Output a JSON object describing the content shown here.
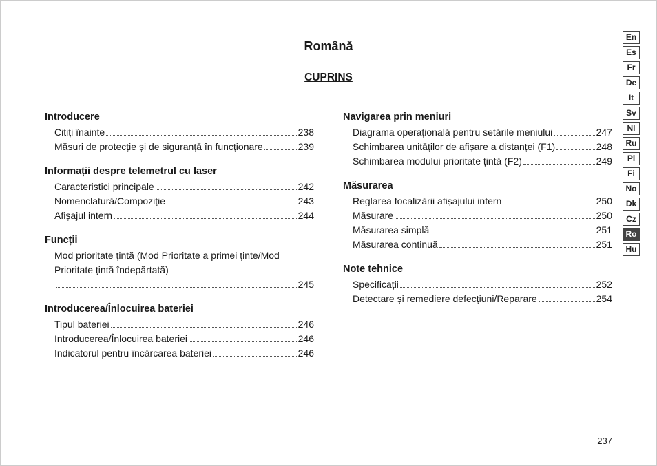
{
  "title": "Română",
  "subtitle": "CUPRINS",
  "page_number": "237",
  "lang_tabs": [
    {
      "code": "En",
      "active": false
    },
    {
      "code": "Es",
      "active": false
    },
    {
      "code": "Fr",
      "active": false
    },
    {
      "code": "De",
      "active": false
    },
    {
      "code": "It",
      "active": false
    },
    {
      "code": "Sv",
      "active": false
    },
    {
      "code": "Nl",
      "active": false
    },
    {
      "code": "Ru",
      "active": false
    },
    {
      "code": "Pl",
      "active": false
    },
    {
      "code": "Fi",
      "active": false
    },
    {
      "code": "No",
      "active": false
    },
    {
      "code": "Dk",
      "active": false
    },
    {
      "code": "Cz",
      "active": false
    },
    {
      "code": "Ro",
      "active": true
    },
    {
      "code": "Hu",
      "active": false
    }
  ],
  "left_sections": [
    {
      "heading": "Introducere",
      "entries": [
        {
          "text": "Citiți înainte",
          "page": "238",
          "wrap": false
        },
        {
          "text": "Măsuri de protecție și de siguranță în funcționare",
          "page": "239",
          "wrap": true
        }
      ]
    },
    {
      "heading": "Informații despre telemetrul cu laser",
      "entries": [
        {
          "text": "Caracteristici principale",
          "page": "242",
          "wrap": false
        },
        {
          "text": "Nomenclatură/Compoziție",
          "page": "243",
          "wrap": false
        },
        {
          "text": "Afișajul intern",
          "page": "244",
          "wrap": false
        }
      ]
    },
    {
      "heading": "Funcții",
      "entries": [
        {
          "text": "Mod prioritate țintă (Mod Prioritate a primei ținte/Mod Prioritate țintă îndepărtată)",
          "page": "245",
          "wrap": true
        }
      ]
    },
    {
      "heading": "Introducerea/Înlocuirea bateriei",
      "entries": [
        {
          "text": "Tipul bateriei",
          "page": "246",
          "wrap": false
        },
        {
          "text": "Introducerea/Înlocuirea bateriei",
          "page": "246",
          "wrap": false
        },
        {
          "text": "Indicatorul pentru încărcarea bateriei",
          "page": "246",
          "wrap": false
        }
      ]
    }
  ],
  "right_sections": [
    {
      "heading": "Navigarea prin meniuri",
      "entries": [
        {
          "text": "Diagrama operațională pentru setările meniului",
          "page": "247",
          "wrap": true
        },
        {
          "text": "Schimbarea unităților de afișare a distanței (F1)",
          "page": "248",
          "wrap": true
        },
        {
          "text": "Schimbarea modului prioritate țintă (F2)",
          "page": "249",
          "wrap": false
        }
      ]
    },
    {
      "heading": "Măsurarea",
      "entries": [
        {
          "text": "Reglarea focalizării afișajului intern",
          "page": "250",
          "wrap": false
        },
        {
          "text": "Măsurare",
          "page": "250",
          "wrap": false
        },
        {
          "text": "Măsurarea simplă",
          "page": "251",
          "wrap": false
        },
        {
          "text": "Măsurarea continuă",
          "page": "251",
          "wrap": false
        }
      ]
    },
    {
      "heading": "Note tehnice",
      "entries": [
        {
          "text": "Specificații",
          "page": "252",
          "wrap": false
        },
        {
          "text": "Detectare și remediere defecțiuni/Reparare",
          "page": "254",
          "wrap": false
        }
      ]
    }
  ]
}
